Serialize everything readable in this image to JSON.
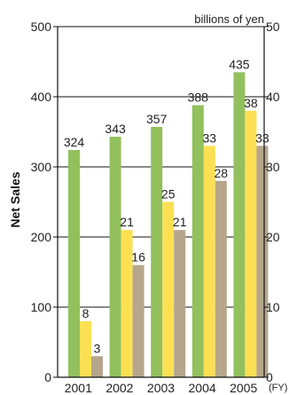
{
  "chart_data": {
    "type": "bar",
    "categories": [
      "2001",
      "2002",
      "2003",
      "2004",
      "2005"
    ],
    "series": [
      {
        "axis": "left",
        "color": "#92c05d",
        "values": [
          324,
          343,
          357,
          388,
          435
        ]
      },
      {
        "axis": "right",
        "color": "#fbe054",
        "values": [
          8,
          21,
          25,
          33,
          38
        ]
      },
      {
        "axis": "right",
        "color": "#b5a68c",
        "values": [
          3,
          16,
          21,
          28,
          33
        ]
      }
    ],
    "ylabel": "Net Sales",
    "y2label": "",
    "unit_label": "billions of yen",
    "x_suffix": "(FY)",
    "ylim": [
      0,
      500
    ],
    "y2lim": [
      0,
      50
    ],
    "yticks": [
      0,
      100,
      200,
      300,
      400,
      500
    ],
    "y2ticks": [
      0,
      10,
      20,
      30,
      40,
      50
    ],
    "grid": true,
    "colors": {
      "grid": "#111111",
      "axis": "#111111",
      "text": "#222222"
    }
  }
}
